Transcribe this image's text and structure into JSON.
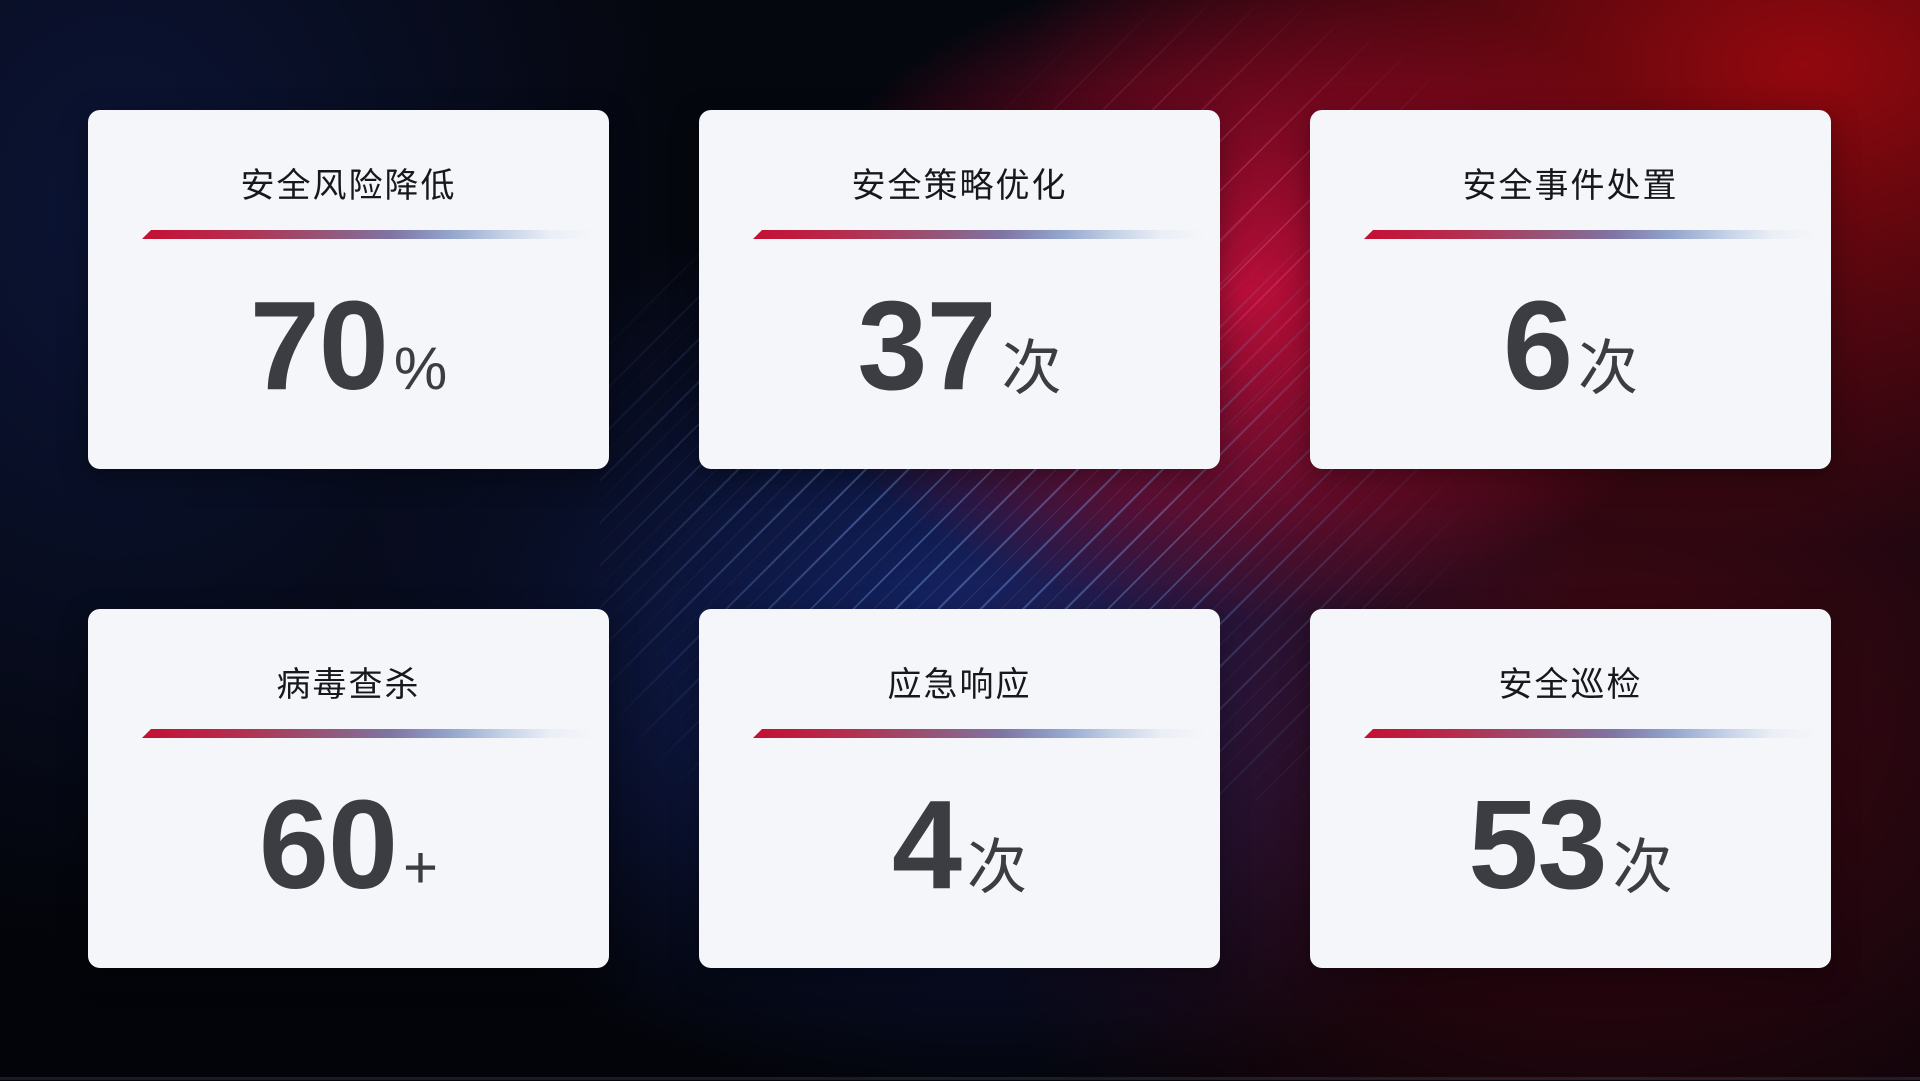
{
  "colors": {
    "accent_red": "#c50f33",
    "accent_blue_fade": "#93a5cc",
    "card_background": "#f5f6f9",
    "title_text": "#17181c",
    "value_text": "#3c3d42",
    "background_navy": "#0c1538",
    "background_blue_glow": "#172976",
    "background_red_glow": "#cd0f3e",
    "background_dark_red": "#9e080e"
  },
  "cards": [
    {
      "title": "安全风险降低",
      "value": "70",
      "unit": "%"
    },
    {
      "title": "安全策略优化",
      "value": "37",
      "unit": "次"
    },
    {
      "title": "安全事件处置",
      "value": "6",
      "unit": "次"
    },
    {
      "title": "病毒查杀",
      "value": "60",
      "unit": "+"
    },
    {
      "title": "应急响应",
      "value": "4",
      "unit": "次"
    },
    {
      "title": "安全巡检",
      "value": "53",
      "unit": "次"
    }
  ]
}
